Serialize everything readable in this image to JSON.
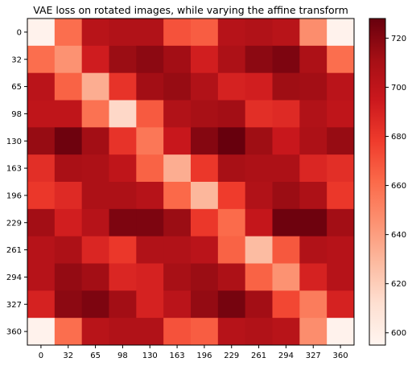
{
  "chart_data": {
    "type": "heatmap",
    "title": "VAE loss on rotated images, while varying the affine transform",
    "xlabel": "",
    "ylabel": "",
    "x_tick_labels": [
      "0",
      "32",
      "65",
      "98",
      "130",
      "163",
      "196",
      "229",
      "261",
      "294",
      "327",
      "360"
    ],
    "y_tick_labels": [
      "0",
      "32",
      "65",
      "98",
      "130",
      "163",
      "196",
      "229",
      "261",
      "294",
      "327",
      "360"
    ],
    "colormap": "Reds",
    "colorbar": {
      "min": 595,
      "max": 728,
      "ticks": [
        600,
        620,
        640,
        660,
        680,
        700,
        720
      ]
    },
    "values": [
      [
        597,
        660,
        703,
        706,
        706,
        670,
        666,
        704,
        706,
        703,
        647,
        597
      ],
      [
        660,
        645,
        693,
        714,
        718,
        712,
        692,
        708,
        718,
        722,
        708,
        660
      ],
      [
        702,
        664,
        634,
        682,
        712,
        715,
        706,
        690,
        692,
        713,
        712,
        702
      ],
      [
        700,
        700,
        658,
        615,
        667,
        706,
        710,
        712,
        684,
        686,
        706,
        700
      ],
      [
        715,
        726,
        712,
        682,
        656,
        696,
        720,
        728,
        713,
        696,
        708,
        715
      ],
      [
        684,
        709,
        708,
        700,
        664,
        634,
        680,
        710,
        708,
        708,
        688,
        684
      ],
      [
        680,
        686,
        708,
        708,
        704,
        662,
        630,
        678,
        706,
        714,
        708,
        680
      ],
      [
        712,
        692,
        704,
        722,
        722,
        714,
        680,
        661,
        698,
        726,
        726,
        712
      ],
      [
        704,
        708,
        688,
        680,
        706,
        706,
        702,
        664,
        628,
        668,
        706,
        704
      ],
      [
        704,
        716,
        712,
        688,
        690,
        710,
        714,
        708,
        664,
        645,
        690,
        704
      ],
      [
        690,
        718,
        722,
        712,
        690,
        702,
        716,
        724,
        712,
        674,
        654,
        690
      ],
      [
        597,
        660,
        703,
        706,
        706,
        670,
        666,
        704,
        706,
        703,
        647,
        597
      ]
    ]
  }
}
